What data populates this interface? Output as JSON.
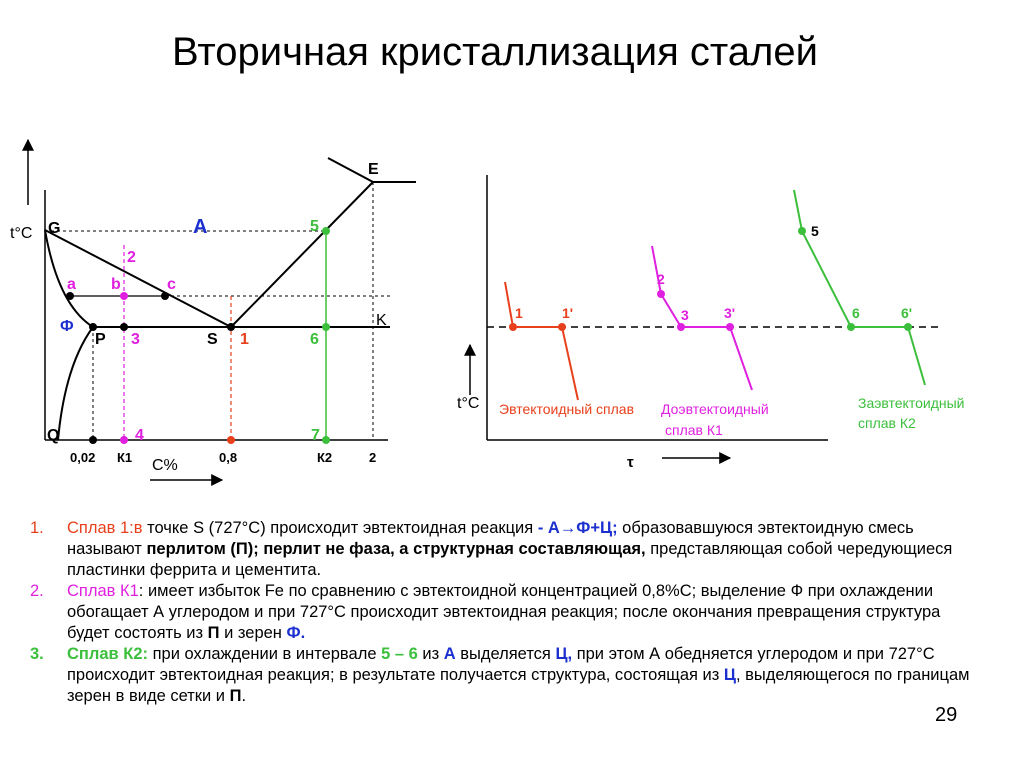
{
  "title": "Вторичная кристаллизация сталей",
  "phase_diagram": {
    "axis_t": "t°C",
    "axis_c": "C%",
    "points": {
      "G": "G",
      "E": "E",
      "A": "A",
      "K": "K",
      "P": "P",
      "S": "S",
      "Q": "Q",
      "F": "Ф"
    },
    "lever": {
      "a": "a",
      "b": "b",
      "c": "c"
    },
    "alloy_marks": {
      "one": "1",
      "two": "2",
      "three": "3",
      "four": "4",
      "five": "5",
      "six": "6",
      "seven": "7"
    },
    "x_ticks": [
      "0,02",
      "К1",
      "0,8",
      "К2",
      "2"
    ]
  },
  "cooling_curves": {
    "axis_t": "t°C",
    "axis_time": "τ",
    "marks": {
      "p1": "1",
      "p1p": "1'",
      "p2": "2",
      "p3": "3",
      "p3p": "3'",
      "p5": "5",
      "p6": "6",
      "p6p": "6'"
    },
    "labels": {
      "eutectoid": "Эвтектоидный сплав",
      "hypo_1": "Доэвтектоидный",
      "hypo_2": "сплав К1",
      "hyper_1": "Заэвтектоидный",
      "hyper_2": "сплав К2"
    }
  },
  "notes": {
    "n1": {
      "num": "1.",
      "lead": "Сплав 1:в",
      "t1": " точке S (727°С) происходит эвтектоидная реакция ",
      "react": "- А→Ф+Ц;",
      "t2": " образовавшуюся эвтектоидную смесь называют ",
      "b1": "перлитом (П); перлит не фаза, а структурная составляющая,",
      "t3": " представляющая собой чередующиеся пластинки феррита и цементита."
    },
    "n2": {
      "num": "2.",
      "lead": "Сплав К1",
      "t1": ": имеет избыток Fe по сравнению с эвтектоидной концентрацией 0,8%С; выделение Ф при охлаждении обогащает А углеродом и при 727°С происходит эвтектоидная реакция; после окончания превращения структура будет состоять из ",
      "bP": "П",
      "t2": " и зерен ",
      "bF": "Ф."
    },
    "n3": {
      "num": "3.",
      "lead": "Сплав К2:",
      "t1": " при охлаждении в интервале ",
      "range": "5 – 6",
      "t2": " из ",
      "bA": "А",
      "t3": " выделяется ",
      "bC": "Ц,",
      "t4": " при этом А обедняется углеродом и при 727°С происходит эвтектоидная реакция; в результате получается структура, состоящая из ",
      "bC2": "Ц",
      "t5": ", выделяющегося по границам зерен в виде сетки и ",
      "bP": "П",
      "t6": "."
    }
  },
  "page_number": "29",
  "colors": {
    "red": "#e8401c",
    "magenta": "#e020e0",
    "green": "#3cbf3c",
    "blue": "#1c30d0"
  }
}
